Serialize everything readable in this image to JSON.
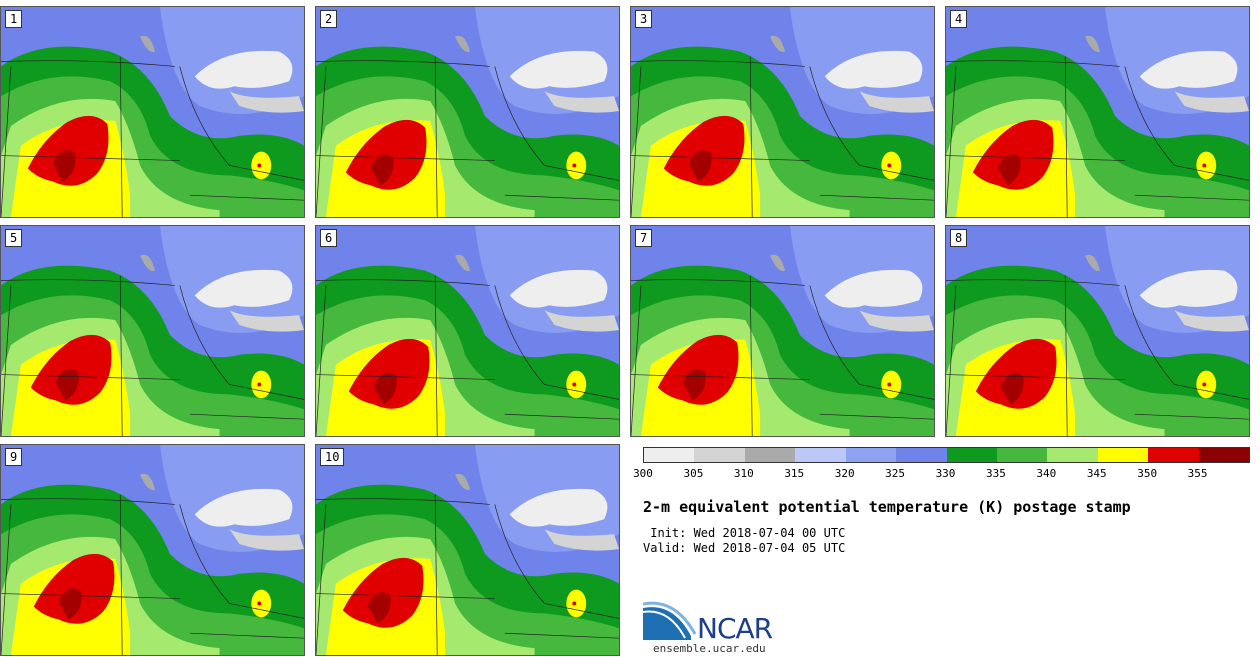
{
  "panels": [
    {
      "label": "1"
    },
    {
      "label": "2"
    },
    {
      "label": "3"
    },
    {
      "label": "4"
    },
    {
      "label": "5"
    },
    {
      "label": "6"
    },
    {
      "label": "7"
    },
    {
      "label": "8"
    },
    {
      "label": "9"
    },
    {
      "label": "10"
    }
  ],
  "colorbar": {
    "ticks": [
      "300",
      "305",
      "310",
      "315",
      "320",
      "325",
      "330",
      "335",
      "340",
      "345",
      "350",
      "355"
    ],
    "colors": [
      "#eeeeee",
      "#d4d4d4",
      "#aaaaaa",
      "#bcc8f7",
      "#8fa3f3",
      "#7083ea",
      "#0e9a1e",
      "#45b83d",
      "#a5e96e",
      "#ffff00",
      "#e00000",
      "#8b0000"
    ]
  },
  "title": "2-m equivalent potential temperature (K) postage stamp",
  "init_line": " Init: Wed 2018-07-04 00 UTC",
  "valid_line": "Valid: Wed 2018-07-04 05 UTC",
  "logo_text": "NCAR",
  "url": "ensemble.ucar.edu"
}
